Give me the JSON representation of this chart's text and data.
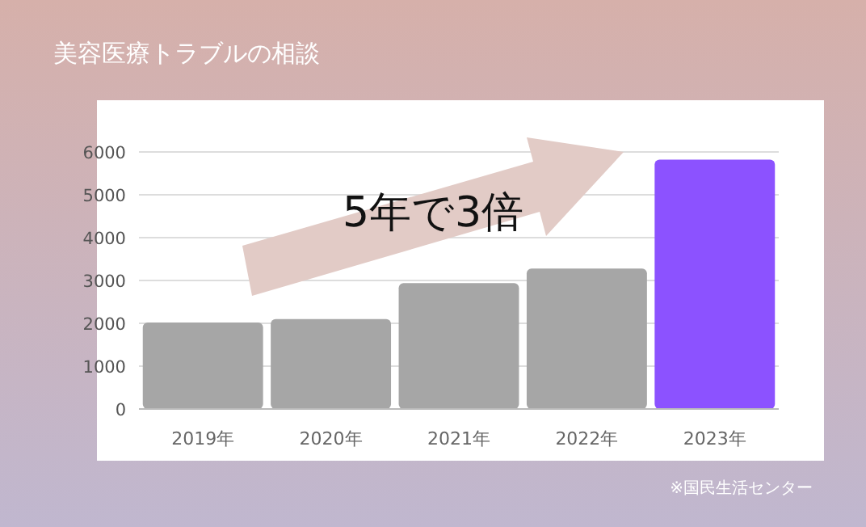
{
  "chart_data": {
    "type": "bar",
    "title": "美容医療トラブルの相談",
    "categories": [
      "2019年",
      "2020年",
      "2021年",
      "2022年",
      "2023年"
    ],
    "values": [
      2020,
      2100,
      2940,
      3280,
      5820
    ],
    "colors": [
      "#a6a6a6",
      "#a6a6a6",
      "#a6a6a6",
      "#a6a6a6",
      "#8c52ff"
    ],
    "ylim": [
      0,
      6000
    ],
    "yticks": [
      0,
      1000,
      2000,
      3000,
      4000,
      5000,
      6000
    ],
    "grid": "y",
    "annotations": [
      "5年で3倍",
      "※国民生活センター"
    ]
  }
}
